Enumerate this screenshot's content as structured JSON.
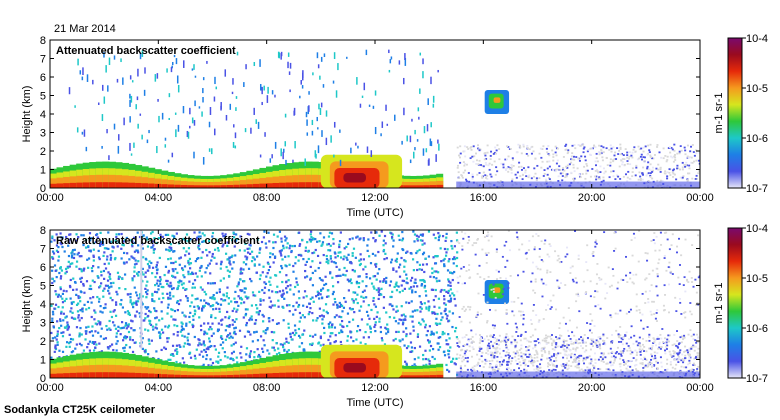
{
  "date_label": "21 Mar 2014",
  "footer_label": "Sodankyla CT25K ceilometer",
  "colors": {
    "scale": [
      "#e6e6f8",
      "#4a52e6",
      "#1e7fe6",
      "#1ec8c8",
      "#2ec83a",
      "#d6e61e",
      "#f59a1e",
      "#e62a0a",
      "#9a0a1e",
      "#7a0a6e"
    ],
    "no_signal": "#d9d9d9"
  },
  "chart_data": [
    {
      "type": "heatmap",
      "title": "Attenuated backscatter coefficient",
      "xlabel": "Time (UTC)",
      "ylabel": "Height (km)",
      "xlim": [
        "00:00",
        "00:00"
      ],
      "ylim": [
        0,
        8
      ],
      "x_ticks": [
        "00:00",
        "04:00",
        "08:00",
        "12:00",
        "16:00",
        "20:00",
        "00:00"
      ],
      "y_ticks": [
        "0",
        "1",
        "2",
        "3",
        "4",
        "5",
        "6",
        "7",
        "8"
      ],
      "colorbar": {
        "label": "m-1 sr-1",
        "scale": "log",
        "ticks": [
          "10-7",
          "10-6",
          "10-5",
          "10-4"
        ]
      },
      "features": [
        {
          "kind": "boundary-layer",
          "from": "00:00",
          "to": "14:30",
          "top_km": 1.3
        },
        {
          "kind": "high-backscatter",
          "from": "10:00",
          "to": "13:00",
          "top_km": 1.8
        },
        {
          "kind": "cloud",
          "from": "16:00",
          "to": "17:00",
          "bottom_km": 4.0,
          "top_km": 5.3
        },
        {
          "kind": "no-signal-region",
          "from": "15:00",
          "to": "24:00",
          "top_km": 2.4
        }
      ]
    },
    {
      "type": "heatmap",
      "title": "Raw attenuated backscatter coefficient",
      "xlabel": "Time (UTC)",
      "ylabel": "Height (km)",
      "xlim": [
        "00:00",
        "00:00"
      ],
      "ylim": [
        0,
        8
      ],
      "x_ticks": [
        "00:00",
        "04:00",
        "08:00",
        "12:00",
        "16:00",
        "20:00",
        "00:00"
      ],
      "y_ticks": [
        "0",
        "1",
        "2",
        "3",
        "4",
        "5",
        "6",
        "7",
        "8"
      ],
      "colorbar": {
        "label": "m-1 sr-1",
        "scale": "log",
        "ticks": [
          "10-7",
          "10-6",
          "10-5",
          "10-4"
        ]
      },
      "features": [
        {
          "kind": "noise-field",
          "from": "00:00",
          "to": "15:00",
          "top_km": 8
        },
        {
          "kind": "boundary-layer",
          "from": "00:00",
          "to": "14:30",
          "top_km": 1.3
        },
        {
          "kind": "high-backscatter",
          "from": "10:00",
          "to": "13:00",
          "top_km": 1.8
        },
        {
          "kind": "cloud",
          "from": "16:00",
          "to": "17:00",
          "bottom_km": 4.0,
          "top_km": 5.3
        },
        {
          "kind": "no-signal-region",
          "from": "15:00",
          "to": "24:00",
          "top_km": 8
        }
      ]
    }
  ]
}
